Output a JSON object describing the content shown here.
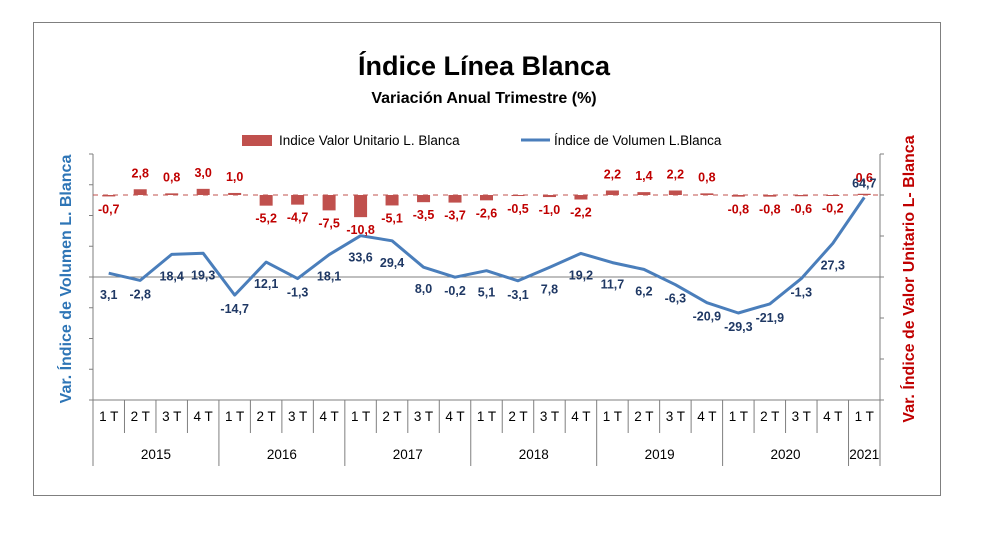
{
  "chart_data": {
    "type": "bar+line",
    "title": "Índice Línea Blanca",
    "subtitle": "Variación Anual Trimestre  (%)",
    "ylabel_left": "Var. Índice de Volumen L. Blanca",
    "ylabel_right": "Var. Índice de Valor Unitario L- Blanca",
    "ylim_left": [
      -100,
      100
    ],
    "ylim_right": [
      -100,
      20
    ],
    "quarters": [
      "1 T",
      "2 T",
      "3 T",
      "4 T",
      "1 T",
      "2 T",
      "3 T",
      "4 T",
      "1 T",
      "2 T",
      "3 T",
      "4 T",
      "1 T",
      "2 T",
      "3 T",
      "4 T",
      "1 T",
      "2 T",
      "3 T",
      "4 T",
      "1 T",
      "2 T",
      "3 T",
      "4 T",
      "1 T"
    ],
    "years": [
      {
        "label": "2015",
        "count": 4
      },
      {
        "label": "2016",
        "count": 4
      },
      {
        "label": "2017",
        "count": 4
      },
      {
        "label": "2018",
        "count": 4
      },
      {
        "label": "2019",
        "count": 4
      },
      {
        "label": "2020",
        "count": 4
      },
      {
        "label": "2021",
        "count": 1
      }
    ],
    "series": [
      {
        "name": "Indice Valor Unitario L. Blanca",
        "type": "bar",
        "axis": "right",
        "color": "#c0504d",
        "values": [
          -0.7,
          2.8,
          0.8,
          3.0,
          1.0,
          -5.2,
          -4.7,
          -7.5,
          -10.8,
          -5.1,
          -3.5,
          -3.7,
          -2.6,
          -0.5,
          -1.0,
          -2.2,
          2.2,
          1.4,
          2.2,
          0.8,
          -0.8,
          -0.8,
          -0.6,
          -0.2,
          0.6
        ],
        "labels": [
          "-0,7",
          "2,8",
          "0,8",
          "3,0",
          "1,0",
          "-5,2",
          "-4,7",
          "-7,5",
          "-10,8",
          "-5,1",
          "-3,5",
          "-3,7",
          "-2,6",
          "-0,5",
          "-1,0",
          "-2,2",
          "2,2",
          "1,4",
          "2,2",
          "0,8",
          "-0,8",
          "-0,8",
          "-0,6",
          "-0,2",
          "0,6"
        ]
      },
      {
        "name": "Índice de Volumen L.Blanca",
        "type": "line",
        "axis": "left",
        "color": "#4a7ebb",
        "values": [
          3.1,
          -2.8,
          18.4,
          19.3,
          -14.7,
          12.1,
          -1.3,
          18.1,
          33.6,
          29.4,
          8.0,
          -0.2,
          5.1,
          -3.1,
          7.8,
          19.2,
          11.7,
          6.2,
          -6.3,
          -20.9,
          -29.3,
          -21.9,
          -1.3,
          27.3,
          64.7
        ],
        "labels": [
          "3,1",
          "-2,8",
          "18,4",
          "19,3",
          "-14,7",
          "12,1",
          "-1,3",
          "18,1",
          "33,6",
          "29,4",
          "8,0",
          "-0,2",
          "5,1",
          "-3,1",
          "7,8",
          "19,2",
          "11,7",
          "6,2",
          "-6,3",
          "-20,9",
          "-29,3",
          "-21,9",
          "-1,3",
          "27,3",
          "64,7"
        ]
      }
    ],
    "legend_position": "top"
  }
}
